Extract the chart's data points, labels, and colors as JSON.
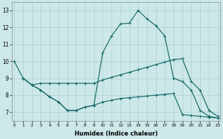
{
  "xlabel": "Humidex (Indice chaleur)",
  "background_color": "#cde8e8",
  "grid_color": "#aacfcf",
  "line_color": "#1a6b6b",
  "yticks": [
    7,
    8,
    9,
    10,
    11,
    12,
    13
  ],
  "xticks": [
    0,
    1,
    2,
    3,
    4,
    5,
    6,
    7,
    8,
    9,
    10,
    11,
    12,
    13,
    14,
    15,
    16,
    17,
    18,
    19,
    20,
    21,
    22,
    23
  ],
  "xlim": [
    -0.3,
    23.3
  ],
  "ylim": [
    6.5,
    13.5
  ],
  "line1_x": [
    0,
    1,
    2,
    3,
    4,
    5,
    6,
    7,
    8,
    9,
    10,
    11,
    12,
    13,
    14,
    15,
    16,
    17,
    18,
    19,
    20,
    21,
    22,
    23
  ],
  "line1_y": [
    10.0,
    9.0,
    8.6,
    8.3,
    7.9,
    7.6,
    7.1,
    7.1,
    7.3,
    7.4,
    10.5,
    11.5,
    12.2,
    12.25,
    13.0,
    12.5,
    12.1,
    11.5,
    9.0,
    8.8,
    8.3,
    7.1,
    6.75,
    6.65
  ],
  "line2_x": [
    1,
    2,
    3,
    4,
    5,
    6,
    7,
    8,
    9,
    10,
    11,
    12,
    13,
    14,
    15,
    16,
    17,
    18,
    19,
    20,
    21,
    22,
    23
  ],
  "line2_y": [
    9.0,
    8.6,
    8.7,
    8.7,
    8.7,
    8.7,
    8.7,
    8.7,
    8.7,
    8.9,
    9.05,
    9.2,
    9.35,
    9.5,
    9.65,
    9.8,
    9.95,
    10.1,
    10.15,
    8.8,
    8.3,
    7.1,
    6.75
  ],
  "line3_x": [
    1,
    2,
    3,
    4,
    5,
    6,
    7,
    8,
    9,
    10,
    11,
    12,
    13,
    14,
    15,
    16,
    17,
    18,
    19,
    20,
    21,
    22,
    23
  ],
  "line3_y": [
    9.0,
    8.6,
    8.3,
    7.9,
    7.6,
    7.1,
    7.1,
    7.3,
    7.4,
    7.6,
    7.7,
    7.8,
    7.85,
    7.9,
    7.95,
    8.0,
    8.05,
    8.1,
    6.85,
    6.8,
    6.75,
    6.7,
    6.65
  ]
}
